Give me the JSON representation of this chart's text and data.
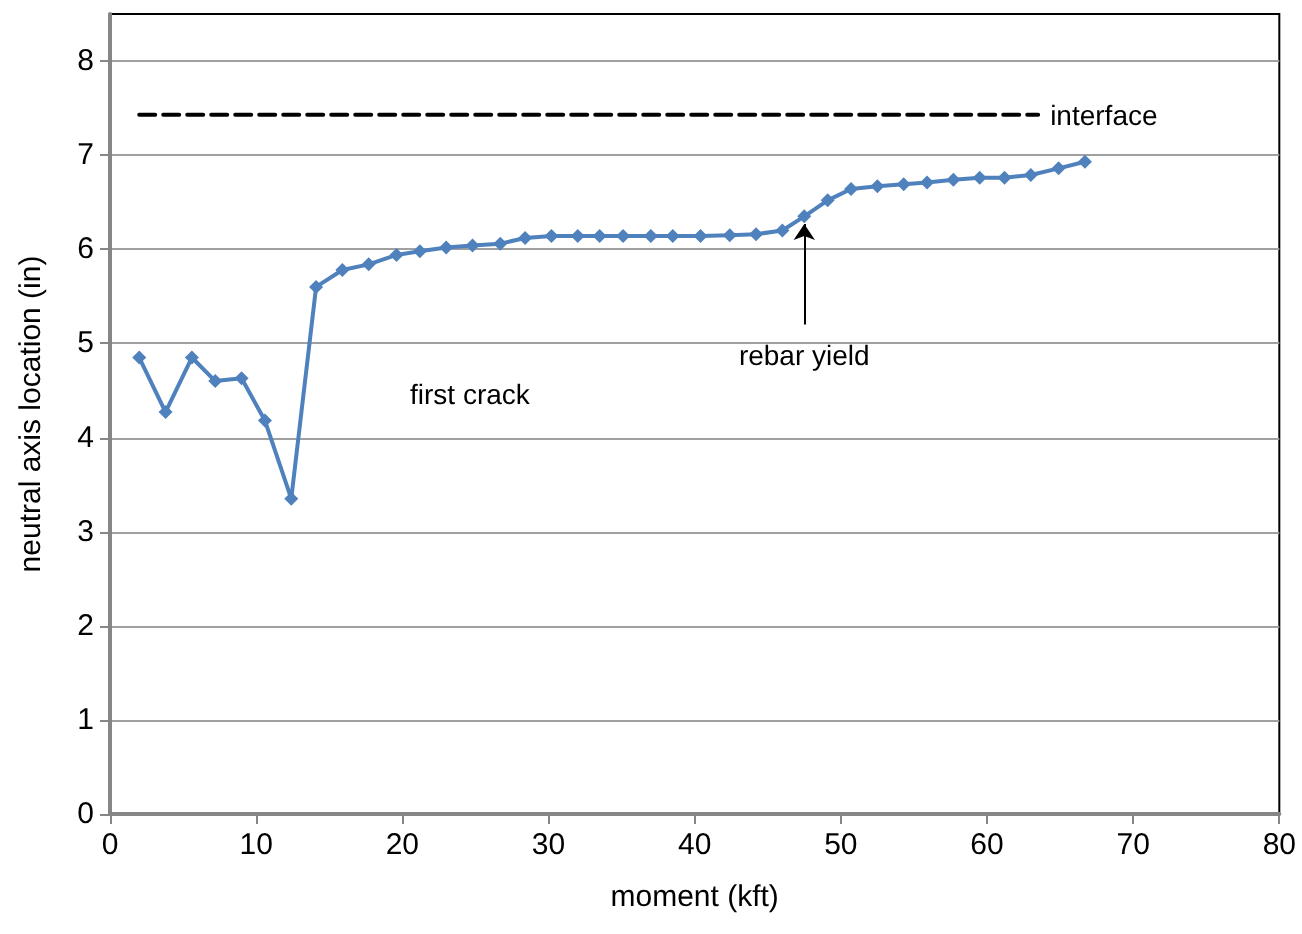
{
  "chart_data": {
    "type": "line",
    "xlabel": "moment (kft)",
    "ylabel": "neutral axis location (in)",
    "series": [
      {
        "color": "#4f81bd",
        "marker": "diamond",
        "line_style": "solid",
        "x": [
          2.0,
          3.8,
          5.6,
          7.2,
          9.0,
          10.6,
          12.4,
          14.1,
          15.9,
          17.7,
          19.6,
          21.2,
          23.0,
          24.8,
          26.7,
          28.4,
          30.2,
          32.0,
          33.5,
          35.1,
          37.0,
          38.5,
          40.4,
          42.4,
          44.2,
          46.0,
          47.5,
          49.1,
          50.7,
          52.5,
          54.3,
          55.9,
          57.7,
          59.5,
          61.2,
          63.0,
          64.9,
          66.7
        ],
        "values": [
          4.85,
          4.27,
          4.85,
          4.6,
          4.63,
          4.18,
          3.35,
          5.6,
          5.78,
          5.84,
          5.94,
          5.98,
          6.02,
          6.04,
          6.06,
          6.12,
          6.14,
          6.14,
          6.14,
          6.14,
          6.14,
          6.14,
          6.14,
          6.15,
          6.16,
          6.2,
          6.35,
          6.52,
          6.64,
          6.67,
          6.69,
          6.71,
          6.74,
          6.76,
          6.76,
          6.79,
          6.86,
          6.93
        ]
      },
      {
        "name": "interface",
        "color": "#000000",
        "marker": "none",
        "line_style": "dashed",
        "x": [
          2,
          63.5
        ],
        "values": [
          7.43,
          7.43
        ]
      }
    ],
    "annotations": [
      "first crack",
      {
        "text": "rebar yield",
        "x": 47.5,
        "y": 6.35
      }
    ],
    "xlim": [
      0,
      80
    ],
    "xticks": [
      0,
      10,
      20,
      30,
      40,
      50,
      60,
      70,
      80
    ],
    "ylim": [
      0,
      8.5
    ],
    "yticks": [
      0,
      1,
      2,
      3,
      4,
      5,
      6,
      7,
      8
    ],
    "grid": "y",
    "legend": false
  }
}
